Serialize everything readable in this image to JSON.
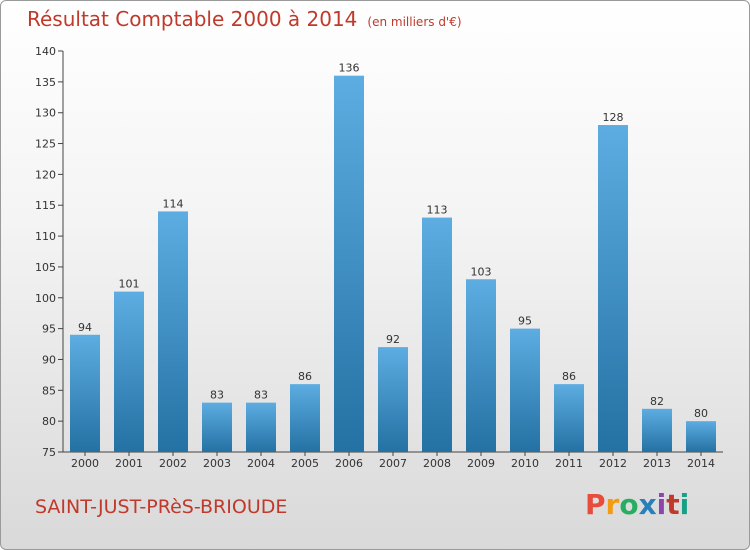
{
  "title": "Résultat Comptable 2000 à 2014",
  "subtitle": "(en milliers d'€)",
  "commune": "SAINT-JUST-PRèS-BRIOUDE",
  "logo": {
    "text": "Proxiti",
    "letter_colors": [
      "#e74c3c",
      "#f39c12",
      "#27ae60",
      "#2980b9",
      "#8e44ad",
      "#c0392b",
      "#16a085"
    ]
  },
  "colors": {
    "title": "#c0392b",
    "bar_top": "#5dade2",
    "bar_bottom": "#2471a3"
  },
  "chart_data": {
    "type": "bar",
    "categories": [
      "2000",
      "2001",
      "2002",
      "2003",
      "2004",
      "2005",
      "2006",
      "2007",
      "2008",
      "2009",
      "2010",
      "2011",
      "2012",
      "2013",
      "2014"
    ],
    "values": [
      94,
      101,
      114,
      83,
      83,
      86,
      136,
      92,
      113,
      103,
      95,
      86,
      128,
      82,
      80
    ],
    "ylim": [
      75,
      140
    ],
    "yticks": [
      75,
      80,
      85,
      90,
      95,
      100,
      105,
      110,
      115,
      120,
      125,
      130,
      135,
      140
    ],
    "grid": false,
    "data_labels": true
  }
}
